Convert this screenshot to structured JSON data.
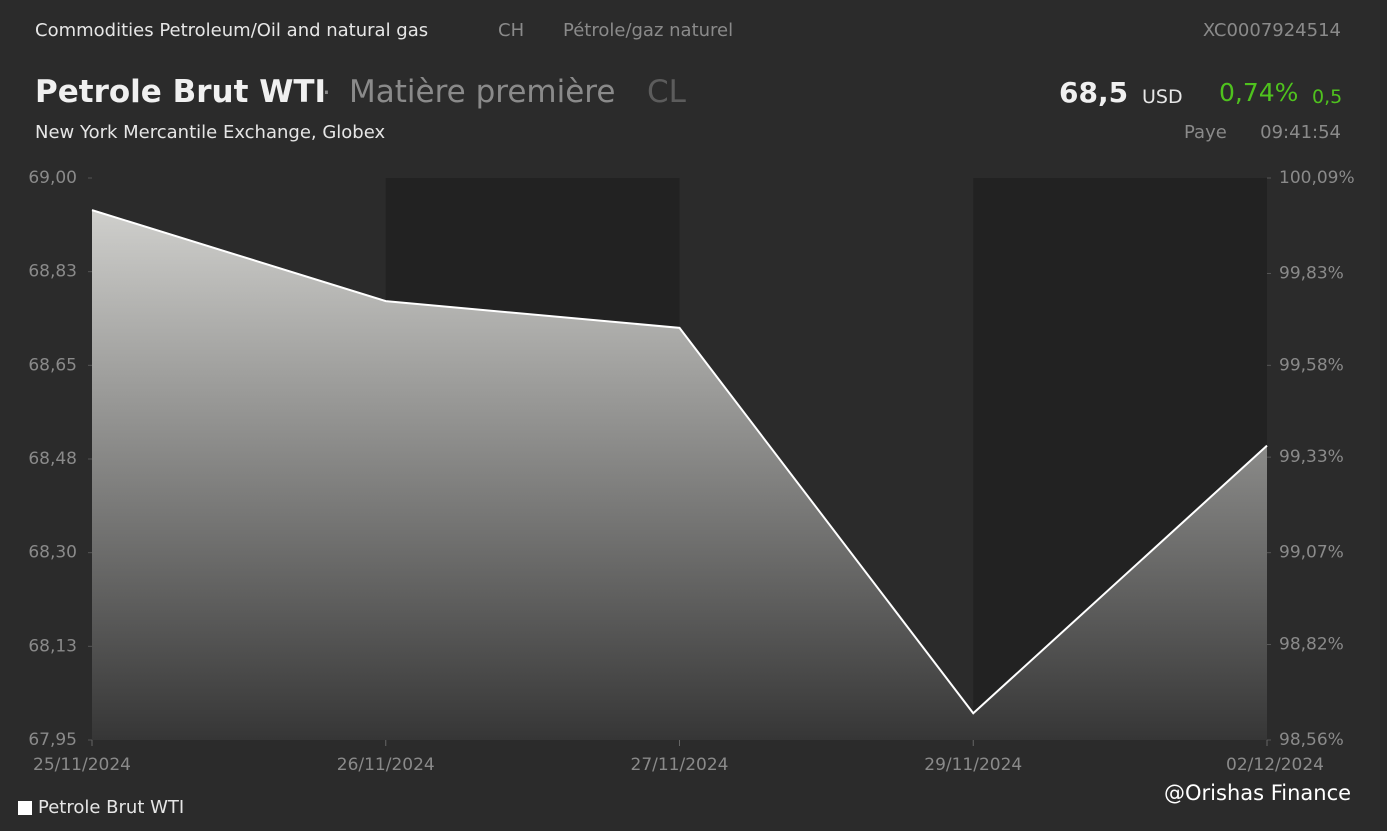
{
  "header": {
    "category": "Commodities Petroleum/Oil and natural gas",
    "country": "CH",
    "category_fr": "Pétrole/gaz naturel",
    "isin": "XC0007924514",
    "name": "Petrole Brut WTI",
    "separator": "·",
    "asset_type": "Matière première",
    "symbol": "CL",
    "price": "68,5",
    "currency": "USD",
    "change_pct": "0,74%",
    "change": "0,5",
    "exchange": "New York Mercantile Exchange, Globex",
    "country_name": "Paye",
    "time": "09:41:54"
  },
  "watermark": "@Orishas Finance",
  "chart_data": {
    "type": "line",
    "categories": [
      "25/11/2024",
      "26/11/2024",
      "27/11/2024",
      "29/11/2024",
      "02/12/2024"
    ],
    "series": [
      {
        "name": "Petrole Brut WTI",
        "color": "#ffffff",
        "values": [
          68.94,
          68.77,
          68.72,
          68.0,
          68.5
        ]
      }
    ],
    "ylim": [
      67.95,
      69.0
    ],
    "yticks": [
      {
        "value": 69.0,
        "label": "69,00"
      },
      {
        "value": 68.825,
        "label": "68,83"
      },
      {
        "value": 68.65,
        "label": "68,65"
      },
      {
        "value": 68.475,
        "label": "68,48"
      },
      {
        "value": 68.3,
        "label": "68,30"
      },
      {
        "value": 68.125,
        "label": "68,13"
      },
      {
        "value": 67.95,
        "label": "67,95"
      }
    ],
    "y2lim": [
      98.56,
      100.09
    ],
    "y2ticks": [
      {
        "value": 100.09,
        "label": "100,09%"
      },
      {
        "value": 99.83,
        "label": "99,83%"
      },
      {
        "value": 99.58,
        "label": "99,58%"
      },
      {
        "value": 99.33,
        "label": "99,33%"
      },
      {
        "value": 99.07,
        "label": "99,07%"
      },
      {
        "value": 98.82,
        "label": "98,82%"
      },
      {
        "value": 98.56,
        "label": "98,56%"
      }
    ]
  }
}
